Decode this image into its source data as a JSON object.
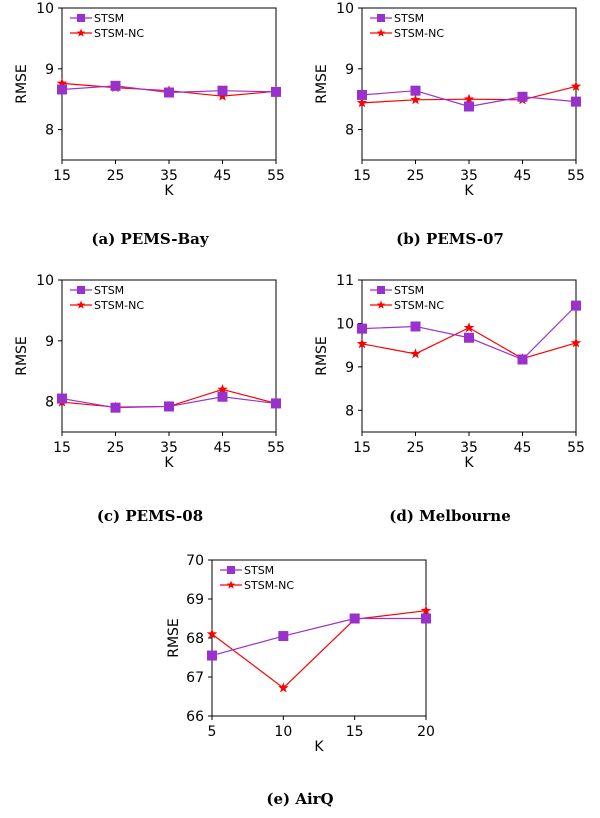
{
  "colors": {
    "stsm": "#9932CC",
    "stsm_nc": "#FF0000"
  },
  "chart_data": [
    {
      "type": "line",
      "caption": "(a) PEMS-Bay",
      "xlabel": "K",
      "ylabel": "RMSE",
      "x": [
        15,
        25,
        35,
        45,
        55
      ],
      "xlim": [
        15,
        55
      ],
      "ylim": [
        7.5,
        10
      ],
      "xticks": [
        15,
        25,
        35,
        45,
        55
      ],
      "yticks": [
        8,
        9,
        10
      ],
      "legend": "top-left",
      "series": [
        {
          "name": "STSM",
          "values": [
            8.66,
            8.72,
            8.61,
            8.64,
            8.62
          ]
        },
        {
          "name": "STSM-NC",
          "values": [
            8.76,
            8.69,
            8.64,
            8.55,
            8.63
          ]
        }
      ]
    },
    {
      "type": "line",
      "caption": "(b) PEMS-07",
      "xlabel": "K",
      "ylabel": "RMSE",
      "x": [
        15,
        25,
        35,
        45,
        55
      ],
      "xlim": [
        15,
        55
      ],
      "ylim": [
        7.5,
        10
      ],
      "xticks": [
        15,
        25,
        35,
        45,
        55
      ],
      "yticks": [
        8,
        9,
        10
      ],
      "legend": "top-left",
      "series": [
        {
          "name": "STSM",
          "values": [
            8.57,
            8.64,
            8.38,
            8.54,
            8.46
          ]
        },
        {
          "name": "STSM-NC",
          "values": [
            8.44,
            8.49,
            8.5,
            8.49,
            8.71
          ]
        }
      ]
    },
    {
      "type": "line",
      "caption": "(c) PEMS-08",
      "xlabel": "K",
      "ylabel": "RMSE",
      "x": [
        15,
        25,
        35,
        45,
        55
      ],
      "xlim": [
        15,
        55
      ],
      "ylim": [
        7.5,
        10
      ],
      "xticks": [
        15,
        25,
        35,
        45,
        55
      ],
      "yticks": [
        8,
        9,
        10
      ],
      "legend": "top-left",
      "series": [
        {
          "name": "STSM",
          "values": [
            8.05,
            7.9,
            7.92,
            8.08,
            7.97
          ]
        },
        {
          "name": "STSM-NC",
          "values": [
            7.99,
            7.91,
            7.92,
            8.2,
            7.97
          ]
        }
      ]
    },
    {
      "type": "line",
      "caption": "(d) Melbourne",
      "xlabel": "K",
      "ylabel": "RMSE",
      "x": [
        15,
        25,
        35,
        45,
        55
      ],
      "xlim": [
        15,
        55
      ],
      "ylim": [
        7.5,
        11
      ],
      "xticks": [
        15,
        25,
        35,
        45,
        55
      ],
      "yticks": [
        8,
        9,
        10,
        11
      ],
      "legend": "top-left",
      "series": [
        {
          "name": "STSM",
          "values": [
            9.88,
            9.93,
            9.67,
            9.17,
            10.41
          ]
        },
        {
          "name": "STSM-NC",
          "values": [
            9.53,
            9.3,
            9.9,
            9.19,
            9.55
          ]
        }
      ]
    },
    {
      "type": "line",
      "caption": "(e) AirQ",
      "xlabel": "K",
      "ylabel": "RMSE",
      "x": [
        5,
        10,
        15,
        20
      ],
      "xlim": [
        5,
        20
      ],
      "ylim": [
        66,
        70
      ],
      "xticks": [
        5,
        10,
        15,
        20
      ],
      "yticks": [
        66,
        67,
        68,
        69,
        70
      ],
      "legend": "top-left",
      "series": [
        {
          "name": "STSM",
          "values": [
            67.55,
            68.05,
            68.5,
            68.5
          ]
        },
        {
          "name": "STSM-NC",
          "values": [
            68.1,
            66.72,
            68.48,
            68.7
          ]
        }
      ]
    }
  ]
}
